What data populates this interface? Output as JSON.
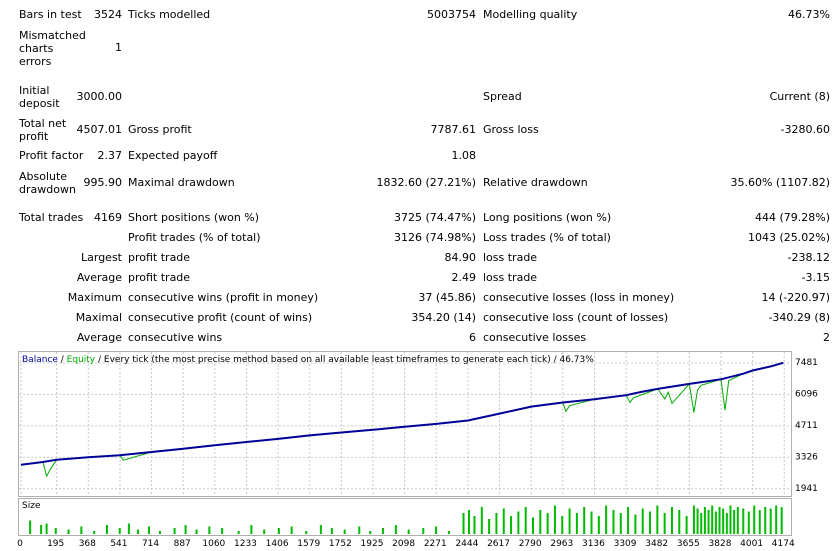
{
  "report": {
    "bars_in_test": {
      "label": "Bars in test",
      "value": "3524"
    },
    "ticks_modelled": {
      "label": "Ticks modelled",
      "value": "5003754"
    },
    "modelling_quality": {
      "label": "Modelling quality",
      "value": "46.73%"
    },
    "mismatched": {
      "label": "Mismatched charts errors",
      "value": "1"
    },
    "initial_deposit": {
      "label": "Initial deposit",
      "value": "3000.00"
    },
    "spread": {
      "label": "Spread",
      "value": "Current (8)"
    },
    "total_net_profit": {
      "label": "Total net profit",
      "value": "4507.01"
    },
    "gross_profit": {
      "label": "Gross profit",
      "value": "7787.61"
    },
    "gross_loss": {
      "label": "Gross loss",
      "value": "-3280.60"
    },
    "profit_factor": {
      "label": "Profit factor",
      "value": "2.37"
    },
    "expected_payoff": {
      "label": "Expected payoff",
      "value": "1.08"
    },
    "absolute_drawdown": {
      "label": "Absolute drawdown",
      "value": "995.90"
    },
    "maximal_drawdown": {
      "label": "Maximal drawdown",
      "value": "1832.60 (27.21%)"
    },
    "relative_drawdown": {
      "label": "Relative drawdown",
      "value": "35.60% (1107.82)"
    },
    "total_trades": {
      "label": "Total trades",
      "value": "4169"
    },
    "short_positions": {
      "label": "Short positions (won %)",
      "value": "3725 (74.47%)"
    },
    "long_positions": {
      "label": "Long positions (won %)",
      "value": "444 (79.28%)"
    },
    "profit_trades": {
      "label": "Profit trades (% of total)",
      "value": "3126 (74.98%)"
    },
    "loss_trades": {
      "label": "Loss trades (% of total)",
      "value": "1043 (25.02%)"
    },
    "largest_prefix": "Largest",
    "largest_profit": {
      "label": "profit trade",
      "value": "84.90"
    },
    "largest_loss": {
      "label": "loss trade",
      "value": "-238.12"
    },
    "average_prefix": "Average",
    "average_profit": {
      "label": "profit trade",
      "value": "2.49"
    },
    "average_loss": {
      "label": "loss trade",
      "value": "-3.15"
    },
    "maximum_prefix": "Maximum",
    "max_consec_wins": {
      "label": "consecutive wins (profit in money)",
      "value": "37 (45.86)"
    },
    "max_consec_losses": {
      "label": "consecutive losses (loss in money)",
      "value": "14 (-220.97)"
    },
    "maximal_prefix": "Maximal",
    "maximal_consec_profit": {
      "label": "consecutive profit (count of wins)",
      "value": "354.20 (14)"
    },
    "maximal_consec_loss": {
      "label": "consecutive loss (count of losses)",
      "value": "-340.29 (8)"
    },
    "average2_prefix": "Average",
    "avg_consec_wins": {
      "label": "consecutive wins",
      "value": "6"
    },
    "avg_consec_losses": {
      "label": "consecutive losses",
      "value": "2"
    }
  },
  "chart_legend": {
    "balance": "Balance",
    "sep1": " / ",
    "equity": "Equity",
    "rest": " / Every tick (the most precise method based on all available least timeframes to generate each tick) / 46.73%"
  },
  "volume_label": "Size",
  "colors": {
    "balance": "#000099",
    "equity": "#00aa00",
    "volume": "#00bb00",
    "grid": "#c8c8c8"
  },
  "chart_data": {
    "type": "line",
    "x_ticks": [
      "0",
      "195",
      "368",
      "541",
      "714",
      "887",
      "1060",
      "1233",
      "1406",
      "1579",
      "1752",
      "1925",
      "2098",
      "2271",
      "2444",
      "2617",
      "2790",
      "2963",
      "3136",
      "3309",
      "3482",
      "3655",
      "3828",
      "4001",
      "4174"
    ],
    "y_ticks": [
      "7481",
      "6096",
      "4711",
      "3326",
      "1941"
    ],
    "xlim": [
      0,
      4200
    ],
    "ylim": [
      1800,
      7700
    ],
    "series": [
      {
        "name": "Balance",
        "x": [
          0,
          120,
          195,
          368,
          541,
          714,
          887,
          1060,
          1233,
          1406,
          1579,
          1752,
          1925,
          2098,
          2271,
          2444,
          2617,
          2790,
          2963,
          3136,
          3309,
          3400,
          3482,
          3655,
          3828,
          3950,
          4001,
          4100,
          4169
        ],
        "values": [
          3000,
          3120,
          3220,
          3330,
          3420,
          3560,
          3700,
          3860,
          4000,
          4140,
          4290,
          4420,
          4540,
          4670,
          4800,
          4950,
          5250,
          5560,
          5740,
          5880,
          6060,
          6220,
          6340,
          6560,
          6760,
          7010,
          7150,
          7330,
          7490
        ]
      },
      {
        "name": "Equity",
        "x": [
          0,
          120,
          140,
          160,
          195,
          368,
          541,
          560,
          714,
          887,
          1060,
          1233,
          1406,
          1579,
          1752,
          1925,
          2098,
          2271,
          2444,
          2617,
          2790,
          2963,
          2980,
          3000,
          3136,
          3309,
          3330,
          3350,
          3482,
          3520,
          3540,
          3560,
          3655,
          3680,
          3700,
          3720,
          3828,
          3850,
          3870,
          3950,
          4001,
          4100,
          4169
        ],
        "values": [
          3000,
          3120,
          2500,
          2800,
          3220,
          3330,
          3420,
          3200,
          3560,
          3700,
          3860,
          4000,
          4140,
          4290,
          4420,
          4540,
          4670,
          4800,
          4950,
          5250,
          5560,
          5740,
          5350,
          5600,
          5880,
          6060,
          5750,
          5950,
          6340,
          5900,
          6200,
          5700,
          6560,
          5300,
          6300,
          6500,
          6760,
          5400,
          6700,
          7010,
          7150,
          7330,
          7490
        ]
      }
    ],
    "volume": {
      "name": "Size",
      "x": [
        50,
        110,
        140,
        190,
        260,
        330,
        400,
        470,
        540,
        590,
        640,
        700,
        760,
        840,
        900,
        960,
        1030,
        1100,
        1190,
        1260,
        1330,
        1410,
        1480,
        1560,
        1640,
        1700,
        1770,
        1850,
        1910,
        1980,
        2050,
        2120,
        2200,
        2270,
        2340,
        2420,
        2450,
        2480,
        2520,
        2560,
        2600,
        2640,
        2680,
        2720,
        2760,
        2800,
        2840,
        2880,
        2920,
        2960,
        3000,
        3040,
        3080,
        3120,
        3160,
        3200,
        3240,
        3280,
        3320,
        3360,
        3400,
        3440,
        3480,
        3520,
        3560,
        3600,
        3640,
        3680,
        3700,
        3720,
        3740,
        3760,
        3780,
        3800,
        3820,
        3840,
        3860,
        3880,
        3900,
        3920,
        3950,
        3980,
        4010,
        4040,
        4070,
        4100,
        4130,
        4160
      ],
      "values": [
        0.45,
        0.3,
        0.35,
        0.2,
        0.15,
        0.25,
        0.1,
        0.3,
        0.2,
        0.35,
        0.15,
        0.25,
        0.1,
        0.2,
        0.3,
        0.15,
        0.25,
        0.2,
        0.1,
        0.3,
        0.15,
        0.2,
        0.25,
        0.1,
        0.3,
        0.2,
        0.15,
        0.25,
        0.1,
        0.2,
        0.3,
        0.15,
        0.2,
        0.25,
        0.1,
        0.7,
        0.8,
        0.6,
        0.9,
        0.5,
        0.7,
        0.85,
        0.6,
        0.75,
        0.9,
        0.55,
        0.8,
        0.7,
        0.95,
        0.6,
        0.85,
        0.7,
        0.9,
        0.75,
        0.6,
        0.95,
        0.8,
        0.7,
        0.9,
        0.65,
        0.85,
        0.75,
        0.95,
        0.7,
        0.9,
        0.8,
        0.6,
        0.95,
        0.85,
        0.7,
        0.9,
        0.8,
        0.95,
        0.75,
        0.9,
        0.85,
        0.7,
        0.95,
        0.8,
        0.9,
        0.85,
        0.75,
        0.95,
        0.8,
        0.9,
        0.85,
        0.95,
        0.9
      ]
    }
  }
}
